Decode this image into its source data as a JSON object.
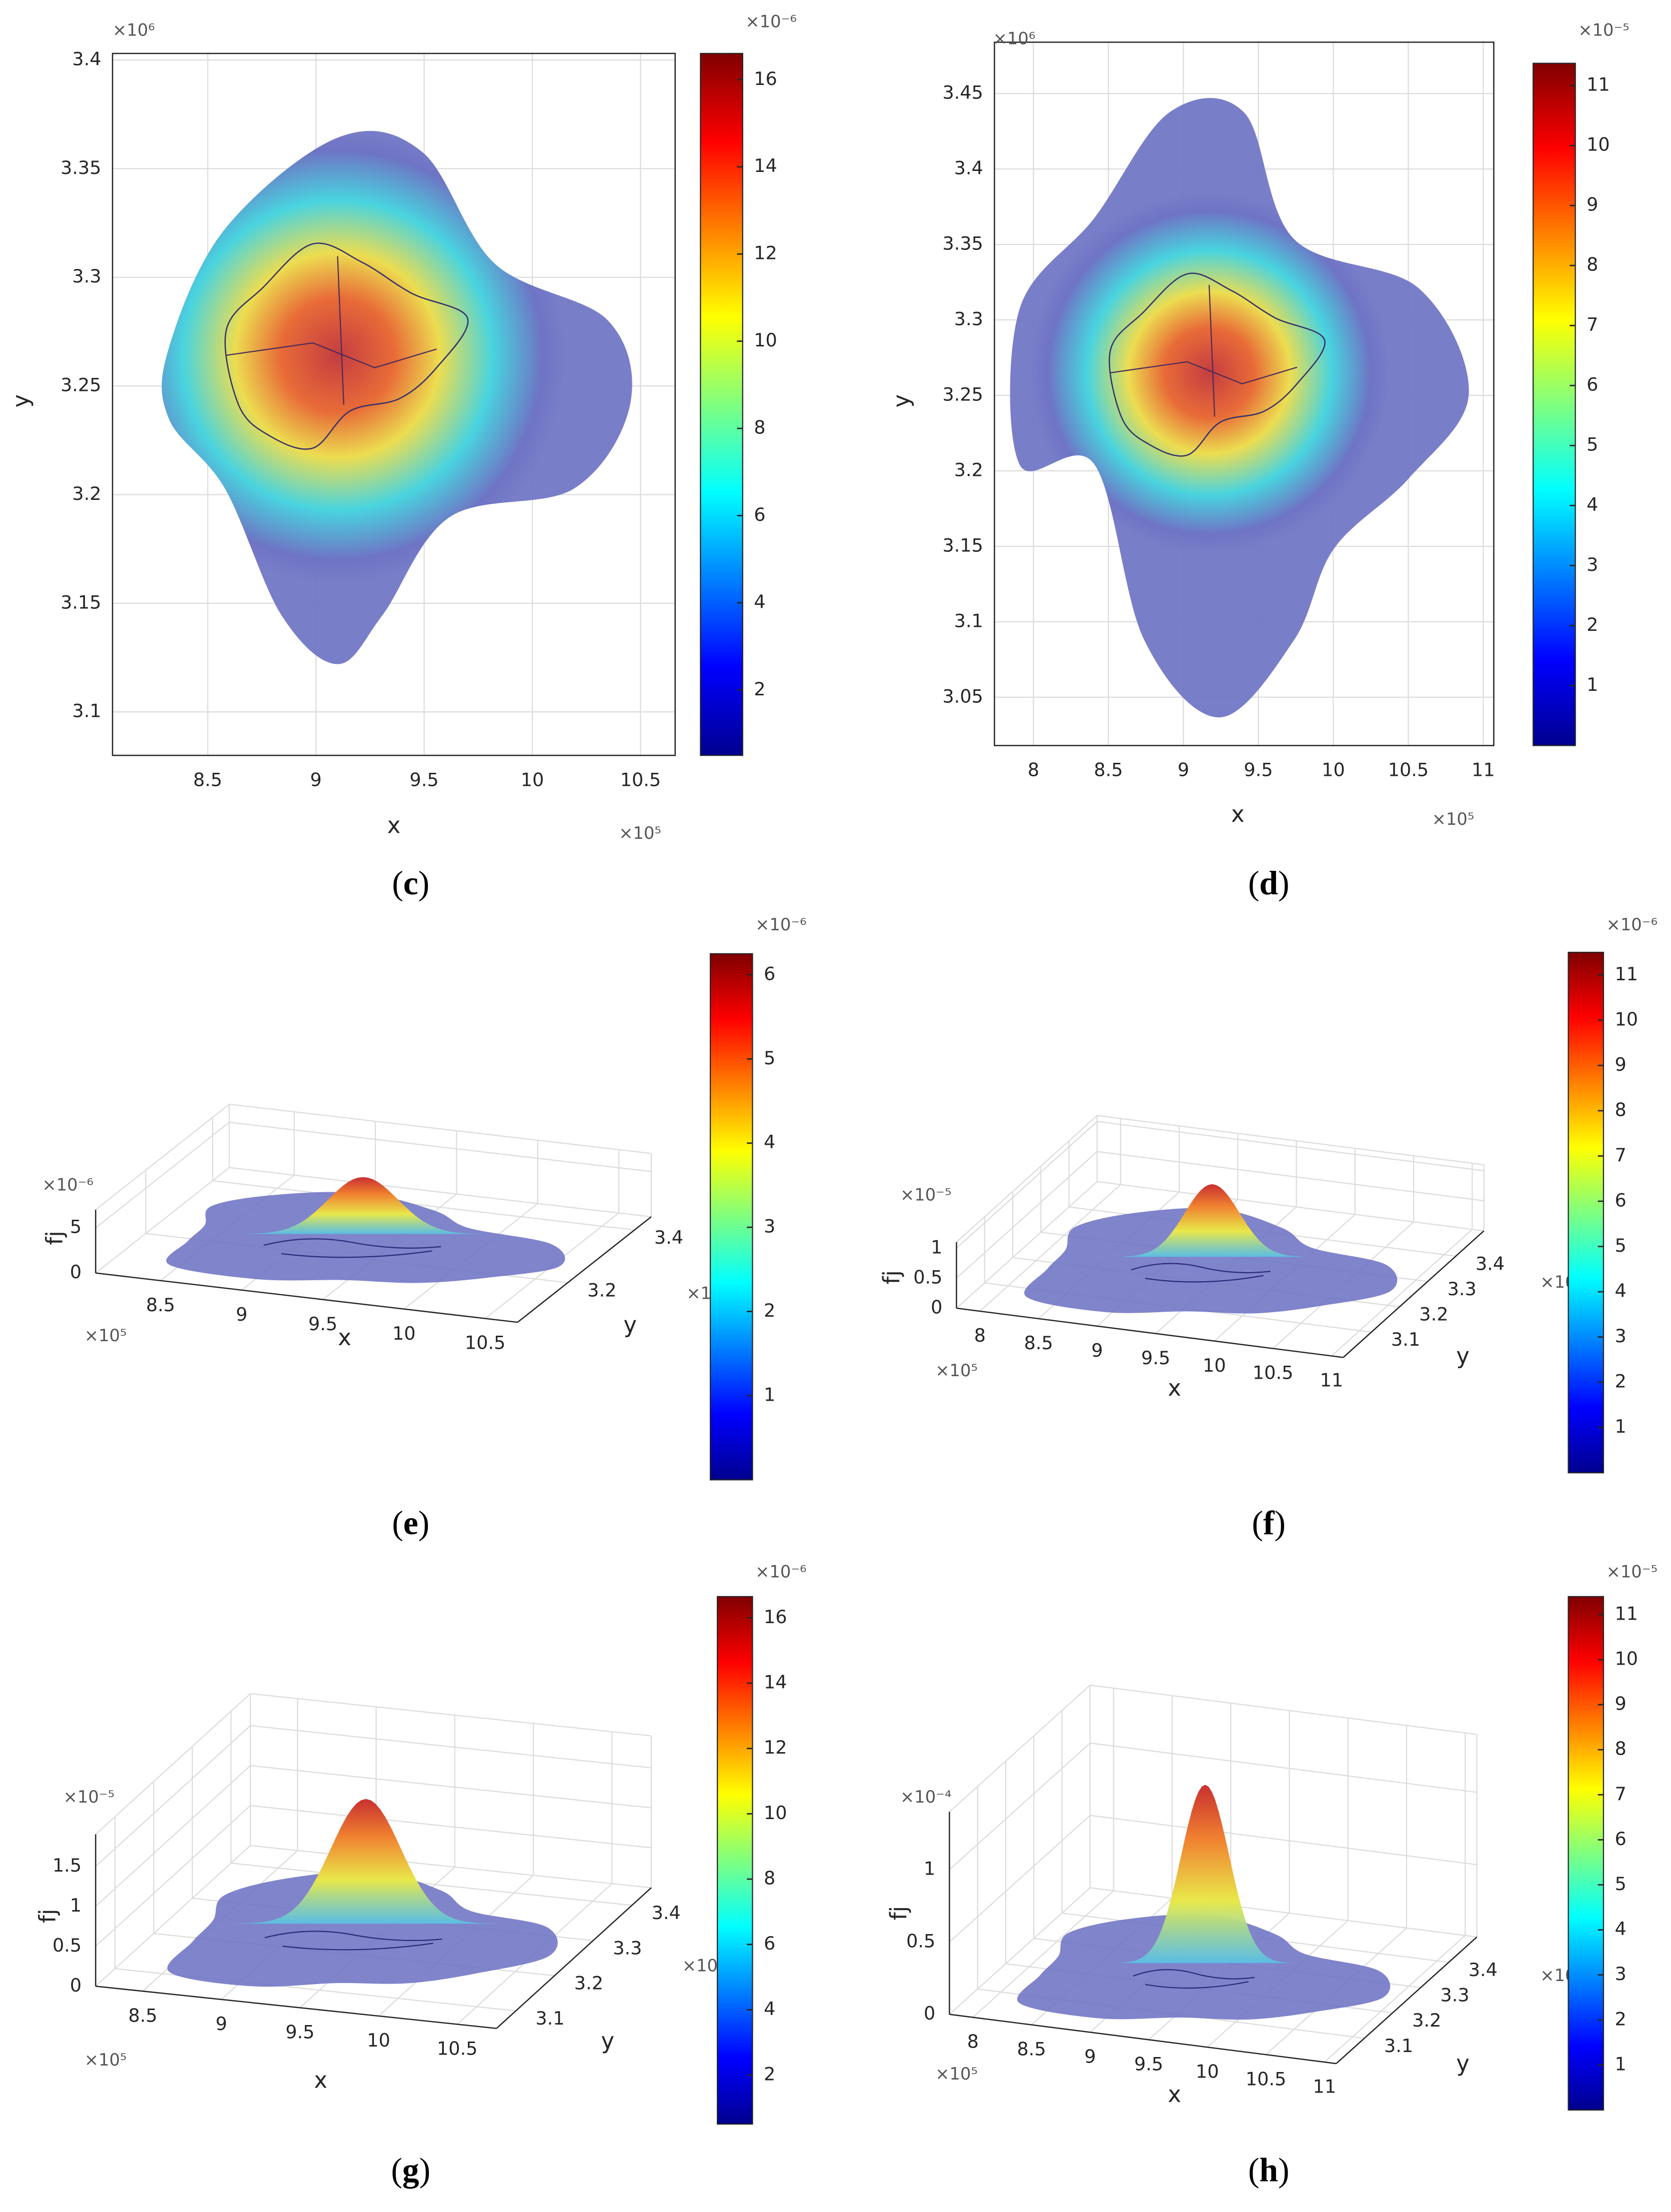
{
  "chart_data": [
    {
      "type": "heatmap",
      "panel_label": "(c)",
      "xlabel": "x",
      "ylabel": "y",
      "xlim": [
        8.06,
        10.66
      ],
      "xticks": [
        8.5,
        9,
        9.5,
        10,
        10.5
      ],
      "x_multiplier": "×10⁵",
      "ylim": [
        3.08,
        3.403
      ],
      "yticks": [
        3.1,
        3.15,
        3.2,
        3.25,
        3.3,
        3.35,
        3.4
      ],
      "y_multiplier": "×10⁶",
      "clim": [
        0.5,
        16.6
      ],
      "cticks": [
        2,
        4,
        6,
        8,
        10,
        12,
        14,
        16
      ],
      "c_multiplier": "×10⁻⁶"
    },
    {
      "type": "heatmap",
      "panel_label": "(d)",
      "xlabel": "x",
      "ylabel": "y",
      "xlim": [
        7.74,
        11.07
      ],
      "xticks": [
        8,
        8.5,
        9,
        9.5,
        10,
        10.5,
        11
      ],
      "x_multiplier": "×10⁵",
      "ylim": [
        3.018,
        3.484
      ],
      "yticks": [
        3.05,
        3.1,
        3.15,
        3.2,
        3.25,
        3.3,
        3.35,
        3.4,
        3.45
      ],
      "y_multiplier": "×10⁶",
      "clim": [
        0,
        11.37
      ],
      "cticks": [
        1,
        2,
        3,
        4,
        5,
        6,
        7,
        8,
        9,
        10,
        11
      ],
      "c_multiplier": "×10⁻⁵"
    },
    {
      "type": "surface3d",
      "panel_label": "(e)",
      "xlabel": "x",
      "ylabel": "y",
      "zlabel": "fj",
      "xlim": [
        8.1,
        10.7
      ],
      "xticks": [
        8.5,
        9,
        9.5,
        10,
        10.5
      ],
      "x_multiplier": "×10⁵",
      "ylim": [
        3.05,
        3.45
      ],
      "yticks": [
        3.2,
        3.4
      ],
      "y_multiplier": "×1",
      "zlim": [
        0,
        7
      ],
      "zticks": [
        0,
        5
      ],
      "z_multiplier": "×10⁻⁶",
      "clim": [
        0,
        6.25
      ],
      "cticks": [
        1,
        2,
        3,
        4,
        5,
        6
      ],
      "c_multiplier": "×10⁻⁶"
    },
    {
      "type": "surface3d",
      "panel_label": "(f)",
      "xlabel": "x",
      "ylabel": "y",
      "zlabel": "fj",
      "xlim": [
        7.8,
        11.1
      ],
      "xticks": [
        8,
        8.5,
        9,
        9.5,
        10,
        10.5,
        11
      ],
      "x_multiplier": "×10⁵",
      "ylim": [
        3.0,
        3.5
      ],
      "yticks": [
        3.1,
        3.2,
        3.3,
        3.4
      ],
      "y_multiplier": "×10",
      "zlim": [
        0,
        1.1
      ],
      "zticks": [
        0,
        0.5,
        1
      ],
      "z_multiplier": "×10⁻⁵",
      "clim": [
        0,
        11.5
      ],
      "cticks": [
        1,
        2,
        3,
        4,
        5,
        6,
        7,
        8,
        9,
        10,
        11
      ],
      "c_multiplier": "×10⁻⁶"
    },
    {
      "type": "surface3d",
      "panel_label": "(g)",
      "xlabel": "x",
      "ylabel": "y",
      "zlabel": "fj",
      "xlim": [
        8.2,
        10.75
      ],
      "xticks": [
        8.5,
        9,
        9.5,
        10,
        10.5
      ],
      "x_multiplier": "×10⁵",
      "ylim": [
        3.05,
        3.45
      ],
      "yticks": [
        3.1,
        3.2,
        3.3,
        3.4
      ],
      "y_multiplier": "×10",
      "zlim": [
        0,
        1.9
      ],
      "zticks": [
        0,
        0.5,
        1,
        1.5
      ],
      "z_multiplier": "×10⁻⁵",
      "clim": [
        0.5,
        16.65
      ],
      "cticks": [
        2,
        4,
        6,
        8,
        10,
        12,
        14,
        16
      ],
      "c_multiplier": "×10⁻⁶"
    },
    {
      "type": "surface3d",
      "panel_label": "(h)",
      "xlabel": "x",
      "ylabel": "y",
      "zlabel": "fj",
      "xlim": [
        7.8,
        11.1
      ],
      "xticks": [
        8,
        8.5,
        9,
        9.5,
        10,
        10.5,
        11
      ],
      "x_multiplier": "×10⁵",
      "ylim": [
        3.0,
        3.5
      ],
      "yticks": [
        3.1,
        3.2,
        3.3,
        3.4
      ],
      "y_multiplier": "×10",
      "zlim": [
        0,
        1.4
      ],
      "zticks": [
        0,
        0.5,
        1
      ],
      "z_multiplier": "×10⁻⁴",
      "clim": [
        0,
        11.4
      ],
      "cticks": [
        1,
        2,
        3,
        4,
        5,
        6,
        7,
        8,
        9,
        10,
        11
      ],
      "c_multiplier": "×10⁻⁵"
    }
  ]
}
